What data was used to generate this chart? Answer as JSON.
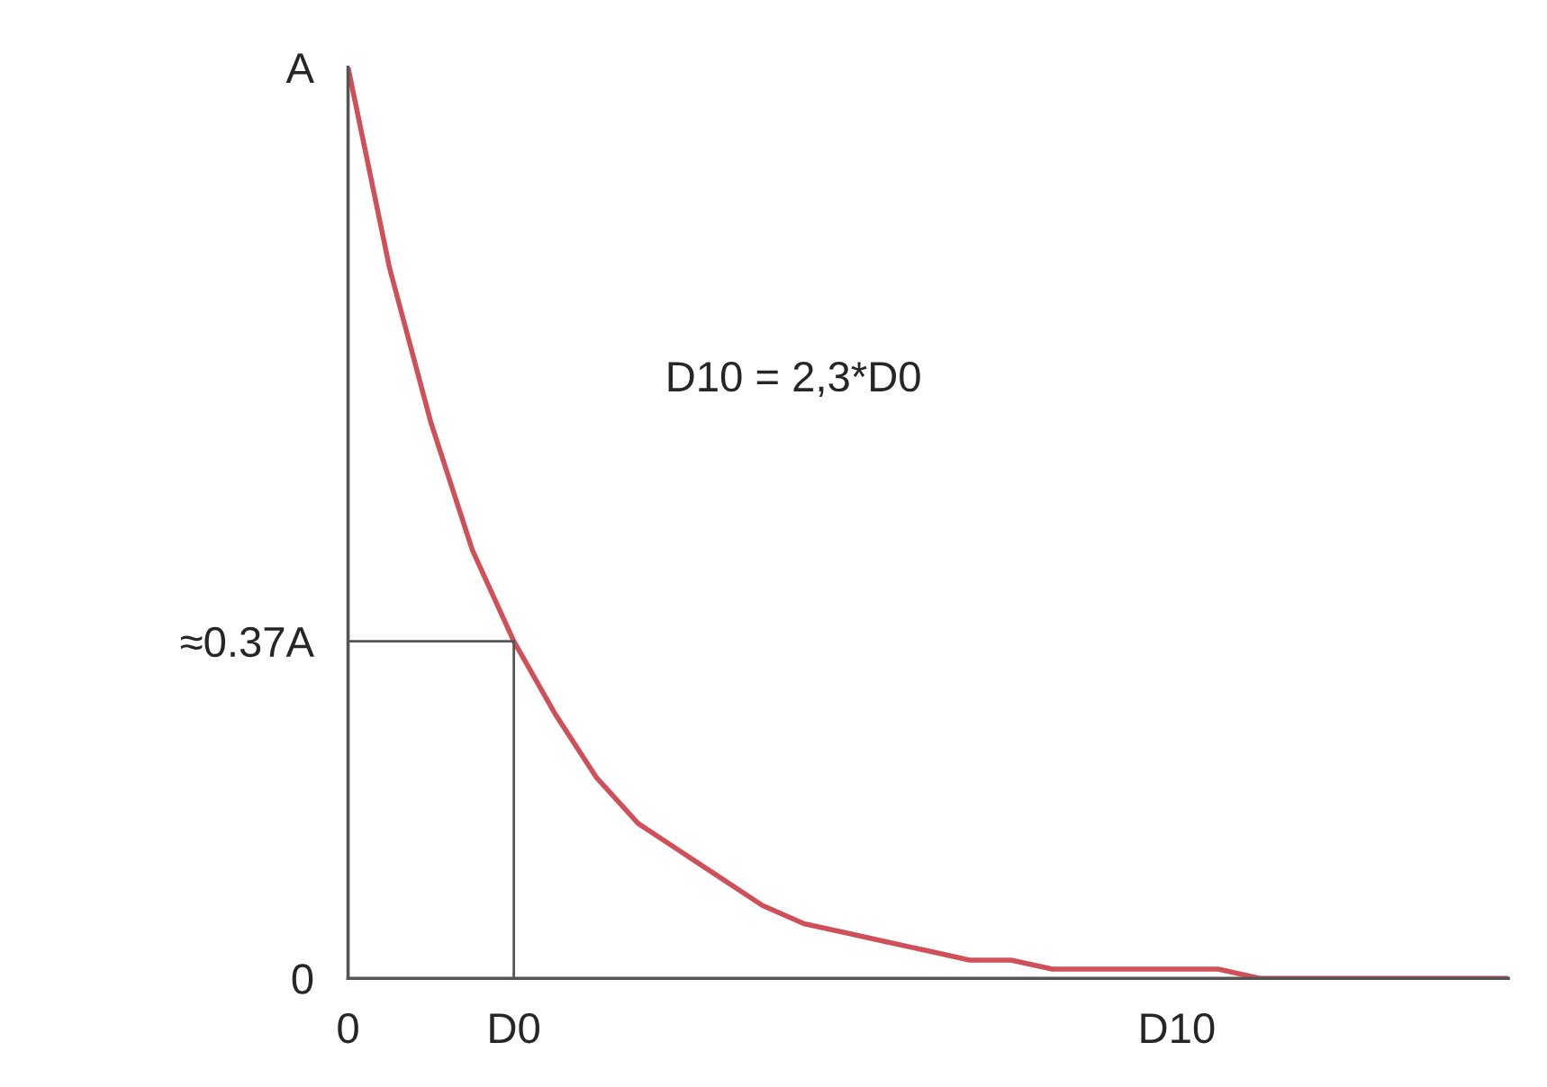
{
  "chart_data": {
    "type": "line",
    "categories": [
      "0",
      null,
      null,
      null,
      "D0",
      null,
      null,
      null,
      null,
      null,
      null,
      null,
      null,
      null,
      null,
      null,
      null,
      null,
      null,
      null,
      "D10",
      null,
      null,
      null,
      null,
      null,
      null,
      null,
      null
    ],
    "series": [
      {
        "color": "#d0505a",
        "values": [
          1,
          0.78,
          0.61,
          0.47,
          0.37,
          0.29,
          0.22,
          0.17,
          0.14,
          0.11,
          0.08,
          0.06,
          0.05,
          0.04,
          0.03,
          0.02,
          0.02,
          0.01,
          0.01,
          0.01,
          0.01,
          0.01,
          0,
          0,
          0,
          0,
          0,
          0,
          0
        ]
      }
    ],
    "ylim": [
      0,
      1
    ],
    "yticks": [
      0,
      {
        "value": 0.37,
        "label": "≈0.37A"
      },
      {
        "value": 1,
        "label": "A"
      }
    ],
    "ref_lines": [
      {
        "axis": "y",
        "value": 0.37,
        "color": "#555555"
      },
      {
        "axis": "x",
        "value": "D0",
        "color": "#555555"
      }
    ],
    "annotations": [
      "D10 = 2,3*D0"
    ],
    "grid": false,
    "marker": "none",
    "line_style": "solid"
  }
}
